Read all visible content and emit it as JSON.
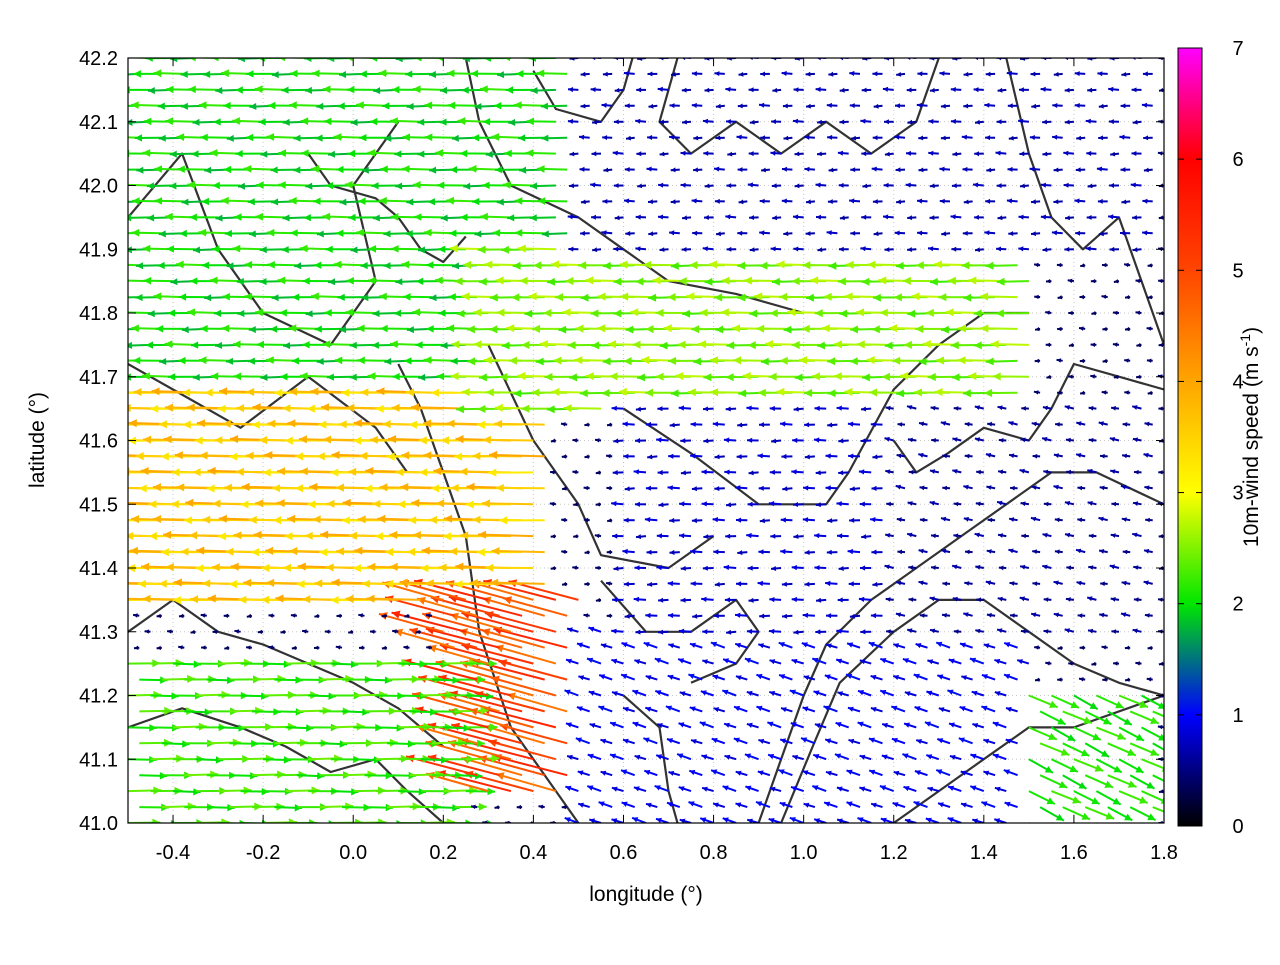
{
  "chart_data": {
    "type": "vector_field",
    "title": "",
    "xlabel": "longitude (°)",
    "ylabel": "latitude (°)",
    "xlim": [
      -0.5,
      1.8
    ],
    "ylim": [
      41.0,
      42.2
    ],
    "x_ticks": [
      "-0.4",
      "-0.2",
      "0.0",
      "0.2",
      "0.4",
      "0.6",
      "0.8",
      "1.0",
      "1.2",
      "1.4",
      "1.6",
      "1.8"
    ],
    "x_tick_values": [
      -0.4,
      -0.2,
      0.0,
      0.2,
      0.4,
      0.6,
      0.8,
      1.0,
      1.2,
      1.4,
      1.6,
      1.8
    ],
    "y_ticks": [
      "41.0",
      "41.1",
      "41.2",
      "41.3",
      "41.4",
      "41.5",
      "41.6",
      "41.7",
      "41.8",
      "41.9",
      "42.0",
      "42.1",
      "42.2"
    ],
    "y_tick_values": [
      41.0,
      41.1,
      41.2,
      41.3,
      41.4,
      41.5,
      41.6,
      41.7,
      41.8,
      41.9,
      42.0,
      42.1,
      42.2
    ],
    "grid": true,
    "colorbar": {
      "label_main": "10m-wind speed (m s",
      "label_sup": "-1",
      "label_end": ")",
      "ticks": [
        "0",
        "1",
        "2",
        "3",
        "4",
        "5",
        "6",
        "7"
      ],
      "tick_values": [
        0,
        1,
        2,
        3,
        4,
        5,
        6,
        7
      ],
      "range": [
        0,
        7
      ],
      "stops": [
        {
          "v": 0,
          "color": "#000000"
        },
        {
          "v": 1,
          "color": "#0000ff"
        },
        {
          "v": 2,
          "color": "#00e600"
        },
        {
          "v": 3,
          "color": "#ffff00"
        },
        {
          "v": 4,
          "color": "#ffa500"
        },
        {
          "v": 5,
          "color": "#ff4500"
        },
        {
          "v": 6,
          "color": "#ff0000"
        },
        {
          "v": 7,
          "color": "#ff00ff"
        }
      ]
    },
    "contour_color": "#333333",
    "wind_regions": [
      {
        "lon": [
          -0.5,
          0.45
        ],
        "lat": [
          41.35,
          41.68
        ],
        "u": -3.6,
        "v": 0.05
      },
      {
        "lon": [
          0.2,
          0.5
        ],
        "lat": [
          41.05,
          41.35
        ],
        "u": -4.8,
        "v": 1.3
      },
      {
        "lon": [
          -0.5,
          0.25
        ],
        "lat": [
          41.0,
          41.25
        ],
        "u": 2.2,
        "v": 0.0
      },
      {
        "lon": [
          -0.5,
          0.5
        ],
        "lat": [
          41.68,
          42.2
        ],
        "u": -2.0,
        "v": 0.0
      },
      {
        "lon": [
          0.3,
          1.5
        ],
        "lat": [
          41.65,
          41.9
        ],
        "u": -2.5,
        "v": 0.0
      },
      {
        "lon": [
          0.5,
          1.5
        ],
        "lat": [
          41.0,
          41.3
        ],
        "u": -0.9,
        "v": 0.3
      },
      {
        "lon": [
          0.5,
          1.8
        ],
        "lat": [
          41.9,
          42.2
        ],
        "u": -0.7,
        "v": 0.0
      },
      {
        "lon": [
          1.2,
          1.8
        ],
        "lat": [
          41.3,
          41.65
        ],
        "u": -0.6,
        "v": 0.1
      },
      {
        "lon": [
          1.5,
          1.8
        ],
        "lat": [
          41.0,
          41.2
        ],
        "u": 1.9,
        "v": -0.9
      },
      {
        "lon": [
          0.6,
          1.2
        ],
        "lat": [
          41.3,
          41.65
        ],
        "u": -0.8,
        "v": 0.0
      }
    ],
    "contours": [
      [
        [
          -0.5,
          41.95
        ],
        [
          -0.38,
          42.05
        ],
        [
          -0.3,
          41.9
        ],
        [
          -0.2,
          41.8
        ],
        [
          -0.05,
          41.75
        ],
        [
          0.05,
          41.85
        ],
        [
          0.0,
          42.0
        ],
        [
          0.1,
          42.1
        ]
      ],
      [
        [
          -0.5,
          41.72
        ],
        [
          -0.4,
          41.68
        ],
        [
          -0.25,
          41.62
        ],
        [
          -0.1,
          41.7
        ],
        [
          0.05,
          41.62
        ],
        [
          0.12,
          41.55
        ]
      ],
      [
        [
          0.1,
          41.72
        ],
        [
          0.15,
          41.65
        ],
        [
          0.2,
          41.55
        ],
        [
          0.25,
          41.45
        ],
        [
          0.28,
          41.3
        ],
        [
          0.35,
          41.15
        ],
        [
          0.45,
          41.05
        ],
        [
          0.5,
          41.0
        ]
      ],
      [
        [
          0.25,
          42.2
        ],
        [
          0.28,
          42.1
        ],
        [
          0.35,
          42.0
        ],
        [
          0.5,
          41.95
        ],
        [
          0.6,
          41.9
        ],
        [
          0.7,
          41.85
        ],
        [
          0.85,
          41.83
        ],
        [
          1.0,
          41.8
        ]
      ],
      [
        [
          0.3,
          41.75
        ],
        [
          0.4,
          41.6
        ],
        [
          0.5,
          41.5
        ],
        [
          0.55,
          41.42
        ],
        [
          0.7,
          41.4
        ],
        [
          0.8,
          41.45
        ]
      ],
      [
        [
          0.6,
          41.65
        ],
        [
          0.75,
          41.58
        ],
        [
          0.9,
          41.5
        ],
        [
          1.05,
          41.5
        ],
        [
          1.1,
          41.55
        ],
        [
          1.2,
          41.68
        ],
        [
          1.3,
          41.75
        ],
        [
          1.4,
          41.8
        ],
        [
          1.5,
          41.8
        ]
      ],
      [
        [
          0.55,
          41.38
        ],
        [
          0.65,
          41.3
        ],
        [
          0.75,
          41.3
        ],
        [
          0.85,
          41.35
        ],
        [
          0.9,
          41.3
        ],
        [
          0.85,
          41.25
        ],
        [
          0.75,
          41.22
        ]
      ],
      [
        [
          0.6,
          41.2
        ],
        [
          0.68,
          41.15
        ],
        [
          0.7,
          41.05
        ],
        [
          0.72,
          41.0
        ]
      ],
      [
        [
          0.9,
          41.0
        ],
        [
          0.95,
          41.1
        ],
        [
          1.0,
          41.2
        ],
        [
          1.05,
          41.28
        ],
        [
          1.15,
          41.35
        ],
        [
          1.25,
          41.4
        ],
        [
          1.35,
          41.45
        ],
        [
          1.45,
          41.5
        ],
        [
          1.55,
          41.55
        ],
        [
          1.65,
          41.55
        ],
        [
          1.8,
          41.5
        ]
      ],
      [
        [
          0.95,
          41.0
        ],
        [
          1.02,
          41.12
        ],
        [
          1.08,
          41.22
        ],
        [
          1.2,
          41.3
        ],
        [
          1.3,
          41.35
        ],
        [
          1.4,
          41.35
        ],
        [
          1.5,
          41.3
        ],
        [
          1.6,
          41.25
        ],
        [
          1.7,
          41.22
        ],
        [
          1.8,
          41.2
        ]
      ],
      [
        [
          1.2,
          41.0
        ],
        [
          1.3,
          41.05
        ],
        [
          1.4,
          41.1
        ],
        [
          1.5,
          41.15
        ],
        [
          1.6,
          41.15
        ],
        [
          1.8,
          41.2
        ]
      ],
      [
        [
          1.45,
          42.2
        ],
        [
          1.5,
          42.05
        ],
        [
          1.55,
          41.95
        ],
        [
          1.62,
          41.9
        ],
        [
          1.7,
          41.95
        ],
        [
          1.75,
          41.85
        ],
        [
          1.8,
          41.75
        ]
      ],
      [
        [
          0.72,
          42.2
        ],
        [
          0.68,
          42.1
        ],
        [
          0.75,
          42.05
        ],
        [
          0.85,
          42.1
        ],
        [
          0.95,
          42.05
        ],
        [
          1.05,
          42.1
        ],
        [
          1.15,
          42.05
        ],
        [
          1.25,
          42.1
        ],
        [
          1.3,
          42.2
        ]
      ],
      [
        [
          -0.5,
          41.3
        ],
        [
          -0.4,
          41.35
        ],
        [
          -0.3,
          41.3
        ],
        [
          -0.2,
          41.28
        ],
        [
          -0.1,
          41.25
        ],
        [
          0.0,
          41.22
        ],
        [
          0.1,
          41.18
        ],
        [
          0.2,
          41.12
        ]
      ],
      [
        [
          -0.5,
          41.15
        ],
        [
          -0.38,
          41.18
        ],
        [
          -0.25,
          41.15
        ],
        [
          -0.15,
          41.12
        ],
        [
          -0.05,
          41.08
        ],
        [
          0.05,
          41.1
        ],
        [
          0.12,
          41.05
        ],
        [
          0.2,
          41.0
        ]
      ],
      [
        [
          1.2,
          41.6
        ],
        [
          1.25,
          41.55
        ],
        [
          1.32,
          41.58
        ],
        [
          1.4,
          41.62
        ],
        [
          1.5,
          41.6
        ],
        [
          1.55,
          41.65
        ],
        [
          1.6,
          41.72
        ],
        [
          1.7,
          41.7
        ],
        [
          1.8,
          41.68
        ]
      ],
      [
        [
          0.4,
          42.18
        ],
        [
          0.45,
          42.12
        ],
        [
          0.55,
          42.1
        ],
        [
          0.6,
          42.15
        ],
        [
          0.62,
          42.2
        ]
      ],
      [
        [
          -0.1,
          42.05
        ],
        [
          -0.05,
          42.0
        ],
        [
          0.05,
          41.98
        ],
        [
          0.1,
          41.95
        ],
        [
          0.15,
          41.9
        ],
        [
          0.2,
          41.88
        ],
        [
          0.25,
          41.92
        ]
      ]
    ]
  }
}
